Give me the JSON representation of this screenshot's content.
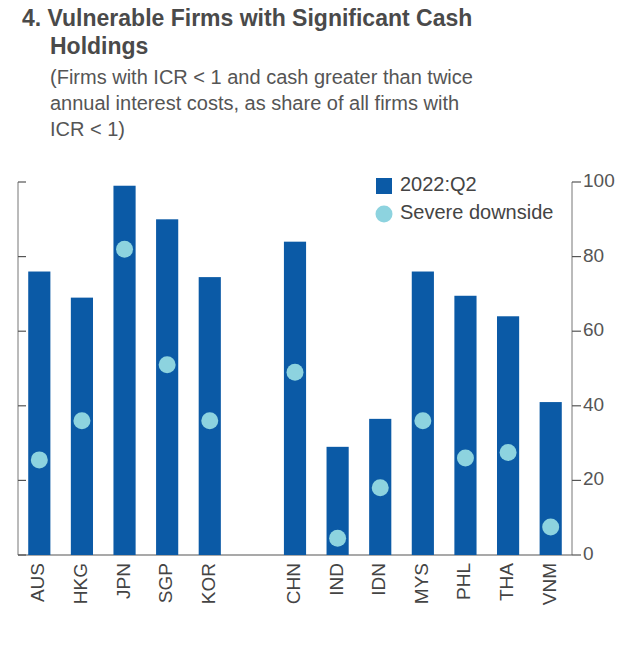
{
  "chart_data": {
    "type": "bar",
    "title": "4. Vulnerable Firms with Significant Cash Holdings",
    "subtitle": "(Firms with ICR < 1 and cash greater than twice annual interest costs, as share of all firms with ICR < 1)",
    "categories": [
      "AUS",
      "HKG",
      "JPN",
      "SGP",
      "KOR",
      "CHN",
      "IND",
      "IDN",
      "MYS",
      "PHL",
      "THA",
      "VNM"
    ],
    "series": [
      {
        "name": "2022:Q2",
        "type": "bar",
        "color": "#0b5aa6",
        "values": [
          76,
          69,
          99,
          90,
          74.5,
          84,
          29,
          36.5,
          76,
          69.5,
          64,
          41
        ]
      },
      {
        "name": "Severe downside",
        "type": "scatter",
        "marker": "circle",
        "color": "#8dd3df",
        "values": [
          25.5,
          36,
          82,
          51,
          36,
          49,
          4.5,
          18,
          36,
          26,
          27.5,
          7.5
        ]
      }
    ],
    "ylim": [
      0,
      100
    ],
    "yticks": [
      0,
      20,
      40,
      60,
      80,
      100
    ],
    "legend": "top-right"
  }
}
